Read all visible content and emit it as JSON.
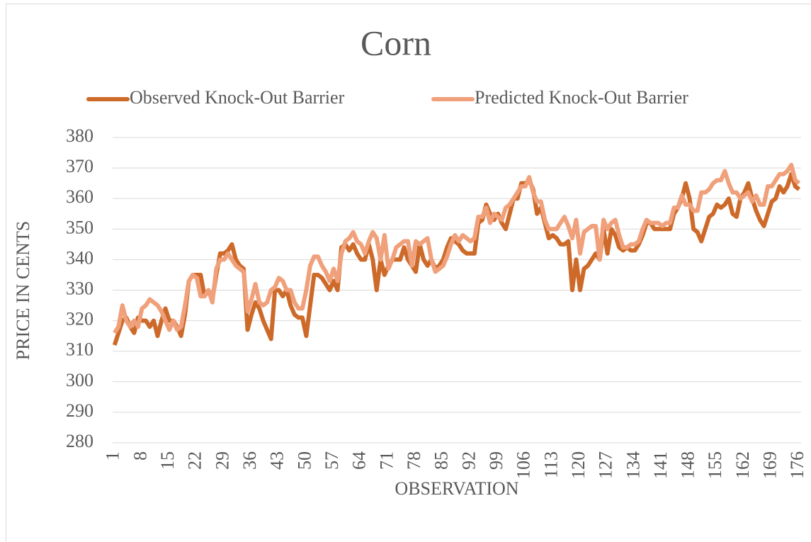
{
  "chart_data": {
    "type": "line",
    "title": "Corn",
    "x_label": "OBSERVATION",
    "y_label": "PRICE IN CENTS",
    "categories": [
      1,
      null,
      null,
      null,
      null,
      null,
      null,
      8,
      null,
      null,
      null,
      null,
      null,
      null,
      15,
      null,
      null,
      null,
      null,
      null,
      null,
      22,
      null,
      null,
      null,
      null,
      null,
      null,
      29,
      null,
      null,
      null,
      null,
      null,
      null,
      36,
      null,
      null,
      null,
      null,
      null,
      null,
      43,
      null,
      null,
      null,
      null,
      null,
      null,
      50,
      null,
      null,
      null,
      null,
      null,
      null,
      57,
      null,
      null,
      null,
      null,
      null,
      null,
      64,
      null,
      null,
      null,
      null,
      null,
      null,
      71,
      null,
      null,
      null,
      null,
      null,
      null,
      78,
      null,
      null,
      null,
      null,
      null,
      null,
      85,
      null,
      null,
      null,
      null,
      null,
      null,
      92,
      null,
      null,
      null,
      null,
      null,
      null,
      99,
      null,
      null,
      null,
      null,
      null,
      null,
      106,
      null,
      null,
      null,
      null,
      null,
      null,
      113,
      null,
      null,
      null,
      null,
      null,
      null,
      120,
      null,
      null,
      null,
      null,
      null,
      null,
      127,
      null,
      null,
      null,
      null,
      null,
      null,
      134,
      null,
      null,
      null,
      null,
      null,
      null,
      141,
      null,
      null,
      null,
      null,
      null,
      null,
      148,
      null,
      null,
      null,
      null,
      null,
      null,
      155,
      null,
      null,
      null,
      null,
      null,
      null,
      162,
      null,
      null,
      null,
      null,
      null,
      null,
      169,
      null,
      null,
      null,
      null,
      null,
      null,
      176
    ],
    "series": [
      {
        "name": "Observed Knock-Out Barrier",
        "color": "#cd6a2a",
        "values": [
          312,
          316,
          320,
          321,
          318,
          316,
          321,
          320,
          320,
          318,
          320,
          315,
          320,
          324,
          320,
          320,
          318,
          315,
          322,
          333,
          335,
          335,
          335,
          328,
          330,
          327,
          335,
          342,
          342,
          343,
          345,
          340,
          338,
          337,
          317,
          322,
          326,
          324,
          320,
          317,
          314,
          330,
          330,
          328,
          330,
          325,
          322,
          321,
          321,
          315,
          325,
          335,
          335,
          334,
          332,
          330,
          333,
          330,
          344,
          345,
          343,
          345,
          342,
          340,
          340,
          345,
          340,
          330,
          340,
          335,
          338,
          340,
          340,
          340,
          344,
          340,
          338,
          336,
          345,
          340,
          338,
          340,
          337,
          338,
          340,
          344,
          347,
          346,
          345,
          343,
          342,
          342,
          342,
          352,
          353,
          358,
          355,
          353,
          355,
          352,
          350,
          355,
          360,
          360,
          365,
          365,
          366,
          363,
          355,
          357,
          352,
          347,
          348,
          347,
          345,
          345,
          346,
          330,
          340,
          330,
          337,
          338,
          340,
          342,
          340,
          350,
          342,
          350,
          348,
          344,
          343,
          344,
          343,
          343,
          345,
          348,
          352,
          352,
          350,
          350,
          350,
          350,
          350,
          355,
          357,
          360,
          365,
          360,
          350,
          349,
          346,
          350,
          354,
          355,
          358,
          357,
          358,
          360,
          355,
          354,
          360,
          362,
          365,
          360,
          356,
          353,
          351,
          355,
          359,
          360,
          364,
          362,
          364,
          368,
          364,
          363
        ]
      },
      {
        "name": "Predicted Knock-Out Barrier",
        "color": "#f0a07a",
        "values": [
          316,
          318,
          325,
          320,
          318,
          320,
          318,
          324,
          325,
          327,
          326,
          325,
          323,
          320,
          317,
          320,
          317,
          318,
          325,
          333,
          335,
          334,
          328,
          328,
          330,
          326,
          337,
          340,
          340,
          342,
          340,
          338,
          337,
          336,
          323,
          327,
          332,
          326,
          325,
          326,
          330,
          331,
          334,
          333,
          330,
          330,
          326,
          324,
          324,
          330,
          338,
          341,
          341,
          338,
          336,
          333,
          337,
          333,
          342,
          346,
          347,
          349,
          346,
          345,
          342,
          346,
          349,
          347,
          340,
          348,
          337,
          340,
          344,
          345,
          346,
          346,
          338,
          346,
          345,
          346,
          347,
          340,
          336,
          337,
          338,
          341,
          345,
          348,
          346,
          348,
          347,
          346,
          347,
          354,
          354,
          357,
          352,
          355,
          354,
          353,
          357,
          358,
          360,
          362,
          364,
          364,
          367,
          362,
          359,
          359,
          353,
          350,
          350,
          350,
          352,
          354,
          351,
          347,
          353,
          342,
          349,
          350,
          351,
          351,
          340,
          353,
          350,
          352,
          353,
          348,
          344,
          344,
          345,
          345,
          346,
          350,
          353,
          352,
          352,
          352,
          351,
          352,
          352,
          357,
          357,
          361,
          358,
          358,
          356,
          356,
          362,
          362,
          363,
          365,
          366,
          366,
          369,
          365,
          362,
          362,
          360,
          361,
          362,
          359,
          361,
          358,
          358,
          364,
          364,
          366,
          368,
          368,
          369,
          371,
          366,
          365
        ]
      }
    ],
    "ylim": [
      280,
      380
    ],
    "yticks": [
      280,
      290,
      300,
      310,
      320,
      330,
      340,
      350,
      360,
      370,
      380
    ],
    "grid": true,
    "legend": "top"
  }
}
